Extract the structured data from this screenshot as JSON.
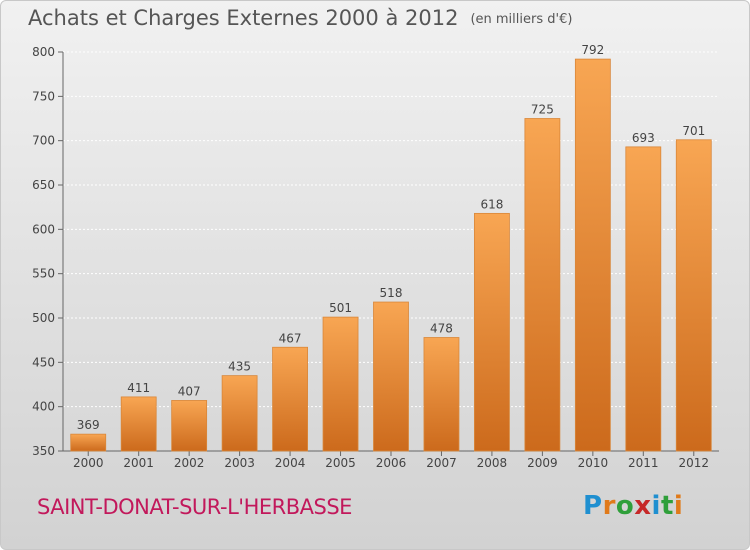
{
  "title": {
    "main": "Achats et Charges Externes 2000 à 2012",
    "sub": "(en milliers d'€)"
  },
  "place": "SAINT-DONAT-SUR-L'HERBASSE",
  "logo": {
    "letters": [
      "P",
      "r",
      "o",
      "x",
      "i",
      "t",
      "i"
    ],
    "colors": [
      "#1f8fd0",
      "#e07a1a",
      "#2f9f3a",
      "#c62828",
      "#1f8fd0",
      "#2f9f3a",
      "#e07a1a"
    ]
  },
  "colors": {
    "bar_top": "#f8a653",
    "bar_bottom": "#cc6a1c",
    "bar_edge": "#d9873a",
    "text": "#444444",
    "place": "#c2185b"
  },
  "chart_data": {
    "type": "bar",
    "title": "Achats et Charges Externes 2000 à 2012",
    "subtitle": "(en milliers d'€)",
    "categories": [
      "2000",
      "2001",
      "2002",
      "2003",
      "2004",
      "2005",
      "2006",
      "2007",
      "2008",
      "2009",
      "2010",
      "2011",
      "2012"
    ],
    "values": [
      369,
      411,
      407,
      435,
      467,
      501,
      518,
      478,
      618,
      725,
      792,
      693,
      701
    ],
    "ylim": [
      350,
      800
    ],
    "yticks": [
      350,
      400,
      450,
      500,
      550,
      600,
      650,
      700,
      750,
      800
    ],
    "grid": true
  }
}
